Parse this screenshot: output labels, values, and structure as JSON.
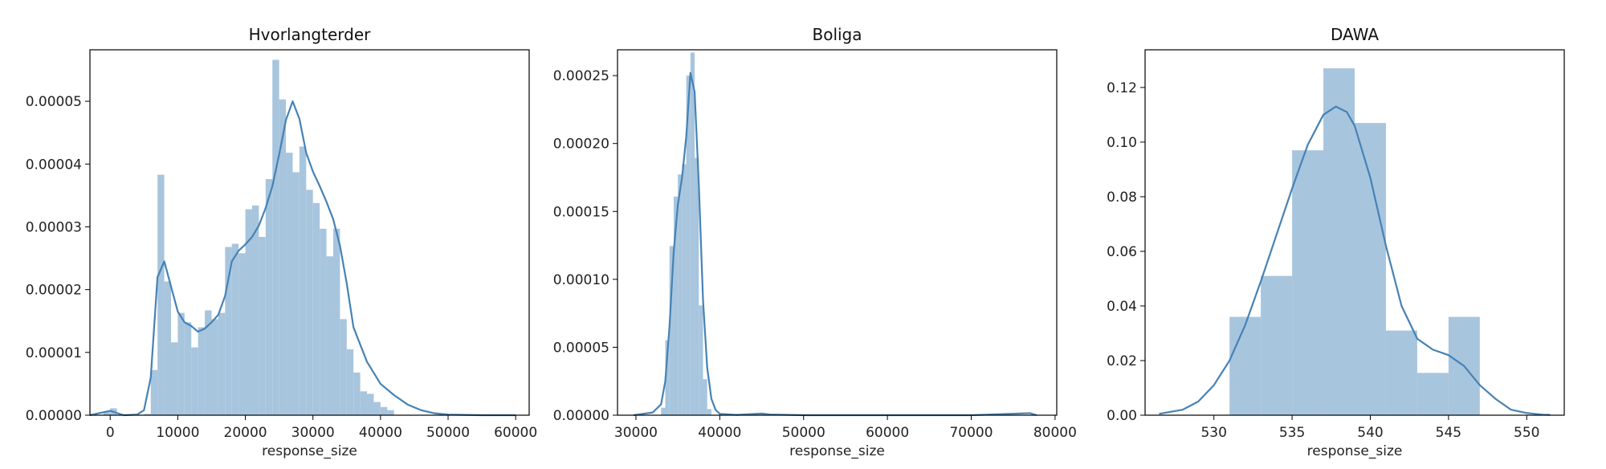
{
  "colors": {
    "hist_fill": "#a8c5de",
    "kde_line": "#4682b4",
    "frame": "#000000",
    "background": "#ffffff"
  },
  "chart_data": [
    {
      "type": "histogram",
      "title": "Hvorlangterder",
      "xlabel": "response_size",
      "ylabel": "",
      "xlim": [
        -3000,
        62000
      ],
      "ylim": [
        0,
        5.82e-05
      ],
      "xticks": [
        0,
        10000,
        20000,
        30000,
        40000,
        50000,
        60000
      ],
      "xtick_labels": [
        "0",
        "10000",
        "20000",
        "30000",
        "40000",
        "50000",
        "60000"
      ],
      "yticks": [
        0,
        1e-05,
        2e-05,
        3e-05,
        4e-05,
        5e-05
      ],
      "ytick_labels": [
        "0.00000",
        "0.00001",
        "0.00002",
        "0.00003",
        "0.00004",
        "0.00005"
      ],
      "bins": [
        {
          "x0": -1000,
          "x1": 0,
          "density": 5e-07
        },
        {
          "x0": 0,
          "x1": 1000,
          "density": 1.1e-06
        },
        {
          "x0": 5000,
          "x1": 6000,
          "density": 2e-07
        },
        {
          "x0": 6000,
          "x1": 7000,
          "density": 7.2e-06
        },
        {
          "x0": 7000,
          "x1": 8000,
          "density": 3.83e-05
        },
        {
          "x0": 8000,
          "x1": 9000,
          "density": 2.13e-05
        },
        {
          "x0": 9000,
          "x1": 10000,
          "density": 1.16e-05
        },
        {
          "x0": 10000,
          "x1": 11000,
          "density": 1.63e-05
        },
        {
          "x0": 11000,
          "x1": 12000,
          "density": 1.48e-05
        },
        {
          "x0": 12000,
          "x1": 13000,
          "density": 1.08e-05
        },
        {
          "x0": 13000,
          "x1": 14000,
          "density": 1.4e-05
        },
        {
          "x0": 14000,
          "x1": 15000,
          "density": 1.67e-05
        },
        {
          "x0": 15000,
          "x1": 16000,
          "density": 1.53e-05
        },
        {
          "x0": 16000,
          "x1": 17000,
          "density": 1.63e-05
        },
        {
          "x0": 17000,
          "x1": 18000,
          "density": 2.68e-05
        },
        {
          "x0": 18000,
          "x1": 19000,
          "density": 2.73e-05
        },
        {
          "x0": 19000,
          "x1": 20000,
          "density": 2.58e-05
        },
        {
          "x0": 20000,
          "x1": 21000,
          "density": 3.28e-05
        },
        {
          "x0": 21000,
          "x1": 22000,
          "density": 3.34e-05
        },
        {
          "x0": 22000,
          "x1": 23000,
          "density": 2.84e-05
        },
        {
          "x0": 23000,
          "x1": 24000,
          "density": 3.76e-05
        },
        {
          "x0": 24000,
          "x1": 25000,
          "density": 5.66e-05
        },
        {
          "x0": 25000,
          "x1": 26000,
          "density": 5.03e-05
        },
        {
          "x0": 26000,
          "x1": 27000,
          "density": 4.18e-05
        },
        {
          "x0": 27000,
          "x1": 28000,
          "density": 3.87e-05
        },
        {
          "x0": 28000,
          "x1": 29000,
          "density": 4.28e-05
        },
        {
          "x0": 29000,
          "x1": 30000,
          "density": 3.59e-05
        },
        {
          "x0": 30000,
          "x1": 31000,
          "density": 3.38e-05
        },
        {
          "x0": 31000,
          "x1": 32000,
          "density": 2.97e-05
        },
        {
          "x0": 32000,
          "x1": 33000,
          "density": 2.53e-05
        },
        {
          "x0": 33000,
          "x1": 34000,
          "density": 2.97e-05
        },
        {
          "x0": 34000,
          "x1": 35000,
          "density": 1.53e-05
        },
        {
          "x0": 35000,
          "x1": 36000,
          "density": 1.05e-05
        },
        {
          "x0": 36000,
          "x1": 37000,
          "density": 6.8e-06
        },
        {
          "x0": 37000,
          "x1": 38000,
          "density": 3.8e-06
        },
        {
          "x0": 38000,
          "x1": 39000,
          "density": 3.4e-06
        },
        {
          "x0": 39000,
          "x1": 40000,
          "density": 2.1e-06
        },
        {
          "x0": 40000,
          "x1": 41000,
          "density": 1.3e-06
        },
        {
          "x0": 41000,
          "x1": 42000,
          "density": 8e-07
        }
      ],
      "kde": {
        "x": [
          -3000,
          0,
          2000,
          4000,
          5000,
          6000,
          7000,
          8000,
          9000,
          10000,
          11000,
          12000,
          13000,
          14000,
          15000,
          16000,
          17000,
          18000,
          19000,
          20000,
          21000,
          22000,
          23000,
          24000,
          25000,
          26000,
          27000,
          28000,
          29000,
          30000,
          31000,
          32000,
          33000,
          34000,
          35000,
          36000,
          38000,
          40000,
          42000,
          44000,
          46000,
          48000,
          50000,
          55000,
          60000
        ],
        "y": [
          0,
          7e-07,
          0,
          1e-07,
          8e-07,
          6e-06,
          2.2e-05,
          2.45e-05,
          2.05e-05,
          1.65e-05,
          1.48e-05,
          1.42e-05,
          1.33e-05,
          1.38e-05,
          1.48e-05,
          1.6e-05,
          1.9e-05,
          2.45e-05,
          2.62e-05,
          2.72e-05,
          2.84e-05,
          3.02e-05,
          3.3e-05,
          3.65e-05,
          4.15e-05,
          4.7e-05,
          5e-05,
          4.72e-05,
          4.18e-05,
          3.88e-05,
          3.65e-05,
          3.4e-05,
          3.12e-05,
          2.7e-05,
          2.1e-05,
          1.4e-05,
          8.5e-06,
          5e-06,
          3.2e-06,
          1.7e-06,
          8e-07,
          3e-07,
          1e-07,
          0,
          0
        ]
      }
    },
    {
      "type": "histogram",
      "title": "Boliga",
      "xlabel": "response_size",
      "ylabel": "",
      "xlim": [
        27800,
        80200
      ],
      "ylim": [
        0,
        0.000269
      ],
      "xticks": [
        30000,
        40000,
        50000,
        60000,
        70000,
        80000
      ],
      "xtick_labels": [
        "30000",
        "40000",
        "50000",
        "60000",
        "70000",
        "80000"
      ],
      "yticks": [
        0,
        5e-05,
        0.0001,
        0.00015,
        0.0002,
        0.00025
      ],
      "ytick_labels": [
        "0.00000",
        "0.00005",
        "0.00010",
        "0.00015",
        "0.00020",
        "0.00025"
      ],
      "bins": [
        {
          "x0": 33000,
          "x1": 33500,
          "density": 5.5e-06
        },
        {
          "x0": 33500,
          "x1": 34000,
          "density": 5.52e-05
        },
        {
          "x0": 34000,
          "x1": 34500,
          "density": 0.0001245
        },
        {
          "x0": 34500,
          "x1": 35000,
          "density": 0.000161
        },
        {
          "x0": 35000,
          "x1": 35500,
          "density": 0.0001772
        },
        {
          "x0": 35500,
          "x1": 36000,
          "density": 0.0001848
        },
        {
          "x0": 36000,
          "x1": 36500,
          "density": 0.00025
        },
        {
          "x0": 36500,
          "x1": 37000,
          "density": 0.000267
        },
        {
          "x0": 37000,
          "x1": 37500,
          "density": 0.0001895
        },
        {
          "x0": 37500,
          "x1": 38000,
          "density": 8.08e-05
        },
        {
          "x0": 38000,
          "x1": 38500,
          "density": 2.65e-05
        },
        {
          "x0": 38500,
          "x1": 39000,
          "density": 4.5e-06
        }
      ],
      "kde": {
        "x": [
          29700,
          32000,
          33000,
          33500,
          34000,
          34500,
          35000,
          35500,
          36000,
          36500,
          37000,
          37500,
          38000,
          38500,
          39000,
          39500,
          40000,
          42000,
          45000,
          46000,
          50000,
          60000,
          70000,
          77000,
          77800
        ],
        "y": [
          0,
          2e-06,
          8e-06,
          2.5e-05,
          6.5e-05,
          0.00012,
          0.000155,
          0.000175,
          0.000205,
          0.000252,
          0.000238,
          0.00017,
          8.5e-05,
          3.5e-05,
          1.2e-05,
          4e-06,
          1e-06,
          2e-07,
          1.2e-06,
          5e-07,
          0,
          0,
          0,
          1.5e-06,
          0
        ]
      }
    },
    {
      "type": "histogram",
      "title": "DAWA",
      "xlabel": "response_size",
      "ylabel": "",
      "xlim": [
        525.6,
        552.4
      ],
      "ylim": [
        0,
        0.1338
      ],
      "xticks": [
        530,
        535,
        540,
        545,
        550
      ],
      "xtick_labels": [
        "530",
        "535",
        "540",
        "545",
        "550"
      ],
      "yticks": [
        0,
        0.02,
        0.04,
        0.06,
        0.08,
        0.1,
        0.12
      ],
      "ytick_labels": [
        "0.00",
        "0.02",
        "0.04",
        "0.06",
        "0.08",
        "0.10",
        "0.12"
      ],
      "bins": [
        {
          "x0": 531,
          "x1": 533,
          "density": 0.036
        },
        {
          "x0": 533,
          "x1": 535,
          "density": 0.051
        },
        {
          "x0": 535,
          "x1": 537,
          "density": 0.097
        },
        {
          "x0": 537,
          "x1": 539,
          "density": 0.127
        },
        {
          "x0": 539,
          "x1": 541,
          "density": 0.107
        },
        {
          "x0": 541,
          "x1": 543,
          "density": 0.031
        },
        {
          "x0": 543,
          "x1": 545,
          "density": 0.0155
        },
        {
          "x0": 545,
          "x1": 547,
          "density": 0.036
        }
      ],
      "kde": {
        "x": [
          526.5,
          528,
          529,
          530,
          531,
          532,
          533,
          534,
          535,
          536,
          537,
          537.8,
          538.5,
          539,
          540,
          541,
          542,
          543,
          544,
          545,
          546,
          547,
          548,
          549,
          550,
          551,
          551.5
        ],
        "y": [
          0.0005,
          0.002,
          0.005,
          0.011,
          0.02,
          0.033,
          0.049,
          0.066,
          0.083,
          0.099,
          0.11,
          0.113,
          0.111,
          0.106,
          0.087,
          0.062,
          0.04,
          0.028,
          0.024,
          0.022,
          0.018,
          0.011,
          0.006,
          0.002,
          0.0008,
          0.0002,
          0.0001
        ]
      }
    }
  ]
}
